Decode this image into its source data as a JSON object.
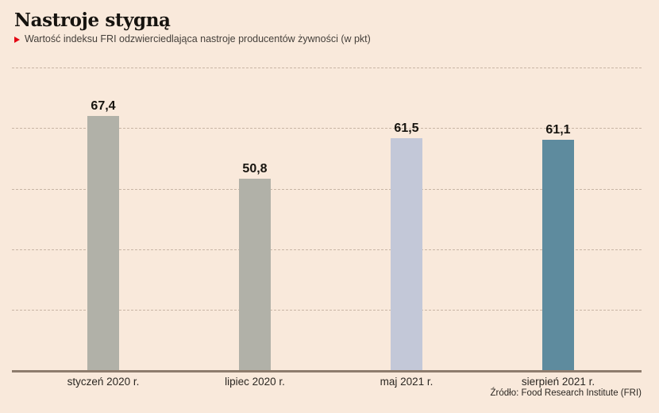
{
  "page": {
    "title": "Nastroje stygną",
    "subtitle": "Wartość indeksu FRI odzwierciedlająca nastroje producentów żywności (w pkt)",
    "source": "Źródło: Food Research Institute (FRI)"
  },
  "colors": {
    "background": "#f9e9db",
    "accent_red": "#e30613",
    "bar_gray": "#b1b1a8",
    "bar_lavender": "#c3c8d8",
    "bar_teal": "#5e8b9e",
    "gridline": "#c8b5a5",
    "axis_line": "#8e7c6d"
  },
  "chart_data": {
    "type": "bar",
    "title": "Nastroje stygną",
    "subtitle": "Wartość indeksu FRI odzwierciedlająca nastroje producentów żywności (w pkt)",
    "categories": [
      "styczeń 2020 r.",
      "lipiec 2020 r.",
      "maj 2021 r.",
      "sierpień 2021 r."
    ],
    "values": [
      67.4,
      50.8,
      61.5,
      61.1
    ],
    "value_labels": [
      "67,4",
      "50,8",
      "61,5",
      "61,1"
    ],
    "bar_colors": [
      "#b1b1a8",
      "#b1b1a8",
      "#c3c8d8",
      "#5e8b9e"
    ],
    "xlabel": "",
    "ylabel": "",
    "ylim": [
      0,
      82
    ],
    "grid": "horizontal-dashed",
    "legend": "none",
    "source": "Źródło: Food Research Institute (FRI)"
  }
}
